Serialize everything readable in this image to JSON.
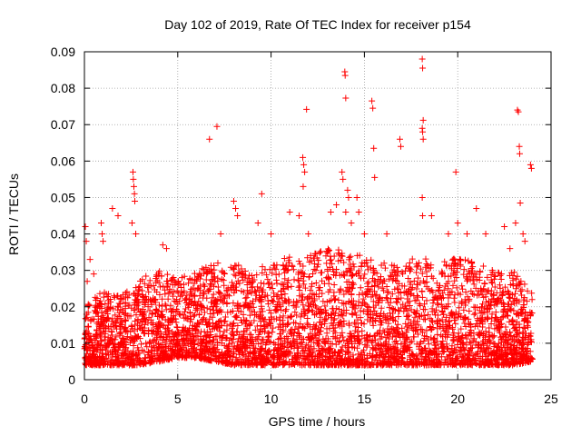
{
  "chart_data": {
    "type": "scatter",
    "title": "Day 102 of 2019, Rate Of TEC Index for receiver p154",
    "xlabel": "GPS time / hours",
    "ylabel": "ROTI / TECUs",
    "xlim": [
      0,
      25
    ],
    "ylim": [
      0,
      0.09
    ],
    "xticks": [
      0,
      5,
      10,
      15,
      20,
      25
    ],
    "xtick_labels": [
      "0",
      "5",
      "10",
      "15",
      "20",
      "25"
    ],
    "yticks": [
      0,
      0.01,
      0.02,
      0.03,
      0.04,
      0.05,
      0.06,
      0.07,
      0.08,
      0.09
    ],
    "ytick_labels": [
      "0",
      "0.01",
      "0.02",
      "0.03",
      "0.04",
      "0.05",
      "0.06",
      "0.07",
      "0.08",
      "0.09"
    ],
    "grid": true,
    "marker": "+",
    "color": "#ff0000",
    "series": [
      {
        "name": "ROTI",
        "points": [
          [
            0.05,
            0.042
          ],
          [
            0.1,
            0.038
          ],
          [
            0.15,
            0.027
          ],
          [
            0.3,
            0.033
          ],
          [
            0.5,
            0.029
          ],
          [
            0.9,
            0.043
          ],
          [
            0.95,
            0.04
          ],
          [
            1.0,
            0.038
          ],
          [
            1.5,
            0.047
          ],
          [
            1.8,
            0.045
          ],
          [
            2.6,
            0.057
          ],
          [
            2.62,
            0.055
          ],
          [
            2.65,
            0.053
          ],
          [
            2.68,
            0.051
          ],
          [
            2.7,
            0.049
          ],
          [
            2.55,
            0.043
          ],
          [
            2.75,
            0.04
          ],
          [
            4.2,
            0.037
          ],
          [
            4.4,
            0.036
          ],
          [
            6.7,
            0.066
          ],
          [
            7.1,
            0.0695
          ],
          [
            7.3,
            0.04
          ],
          [
            8.0,
            0.049
          ],
          [
            8.1,
            0.047
          ],
          [
            8.2,
            0.045
          ],
          [
            9.5,
            0.051
          ],
          [
            9.3,
            0.043
          ],
          [
            10.0,
            0.04
          ],
          [
            11.0,
            0.046
          ],
          [
            11.5,
            0.045
          ],
          [
            11.7,
            0.061
          ],
          [
            11.75,
            0.059
          ],
          [
            11.8,
            0.057
          ],
          [
            11.72,
            0.053
          ],
          [
            11.9,
            0.0742
          ],
          [
            12.0,
            0.04
          ],
          [
            13.2,
            0.046
          ],
          [
            13.5,
            0.048
          ],
          [
            13.8,
            0.057
          ],
          [
            13.85,
            0.055
          ],
          [
            13.95,
            0.0845
          ],
          [
            13.97,
            0.0835
          ],
          [
            14.0,
            0.0773
          ],
          [
            14.1,
            0.052
          ],
          [
            14.15,
            0.05
          ],
          [
            14.0,
            0.046
          ],
          [
            14.3,
            0.043
          ],
          [
            14.6,
            0.05
          ],
          [
            14.7,
            0.046
          ],
          [
            15.4,
            0.0765
          ],
          [
            15.45,
            0.0745
          ],
          [
            15.5,
            0.0635
          ],
          [
            15.55,
            0.0555
          ],
          [
            15.0,
            0.04
          ],
          [
            16.2,
            0.04
          ],
          [
            16.9,
            0.066
          ],
          [
            16.95,
            0.064
          ],
          [
            18.1,
            0.088
          ],
          [
            18.12,
            0.0855
          ],
          [
            18.15,
            0.0712
          ],
          [
            18.1,
            0.069
          ],
          [
            18.12,
            0.068
          ],
          [
            18.15,
            0.066
          ],
          [
            18.1,
            0.05
          ],
          [
            18.12,
            0.045
          ],
          [
            18.6,
            0.045
          ],
          [
            19.5,
            0.04
          ],
          [
            19.9,
            0.057
          ],
          [
            20.0,
            0.043
          ],
          [
            20.5,
            0.04
          ],
          [
            21.0,
            0.047
          ],
          [
            21.5,
            0.04
          ],
          [
            22.5,
            0.042
          ],
          [
            22.8,
            0.036
          ],
          [
            23.2,
            0.074
          ],
          [
            23.25,
            0.0735
          ],
          [
            23.3,
            0.064
          ],
          [
            23.32,
            0.062
          ],
          [
            23.35,
            0.0485
          ],
          [
            23.1,
            0.043
          ],
          [
            23.5,
            0.04
          ],
          [
            23.6,
            0.038
          ],
          [
            23.9,
            0.059
          ],
          [
            23.95,
            0.058
          ]
        ]
      }
    ],
    "baseline_profile": {
      "description": "dense band of ROTI samples across the day",
      "hours": [
        0,
        1,
        2,
        3,
        4,
        5,
        6,
        7,
        8,
        9,
        10,
        11,
        12,
        13,
        14,
        15,
        16,
        17,
        18,
        19,
        20,
        21,
        22,
        23,
        24
      ],
      "low": [
        0.004,
        0.004,
        0.004,
        0.004,
        0.005,
        0.006,
        0.006,
        0.005,
        0.004,
        0.004,
        0.004,
        0.004,
        0.004,
        0.004,
        0.004,
        0.004,
        0.004,
        0.004,
        0.004,
        0.004,
        0.004,
        0.004,
        0.004,
        0.004,
        0.005
      ],
      "high": [
        0.022,
        0.024,
        0.024,
        0.028,
        0.03,
        0.028,
        0.03,
        0.032,
        0.032,
        0.03,
        0.032,
        0.034,
        0.034,
        0.036,
        0.036,
        0.034,
        0.032,
        0.032,
        0.034,
        0.032,
        0.034,
        0.032,
        0.03,
        0.03,
        0.024
      ],
      "samples_per_hour": 180
    }
  }
}
